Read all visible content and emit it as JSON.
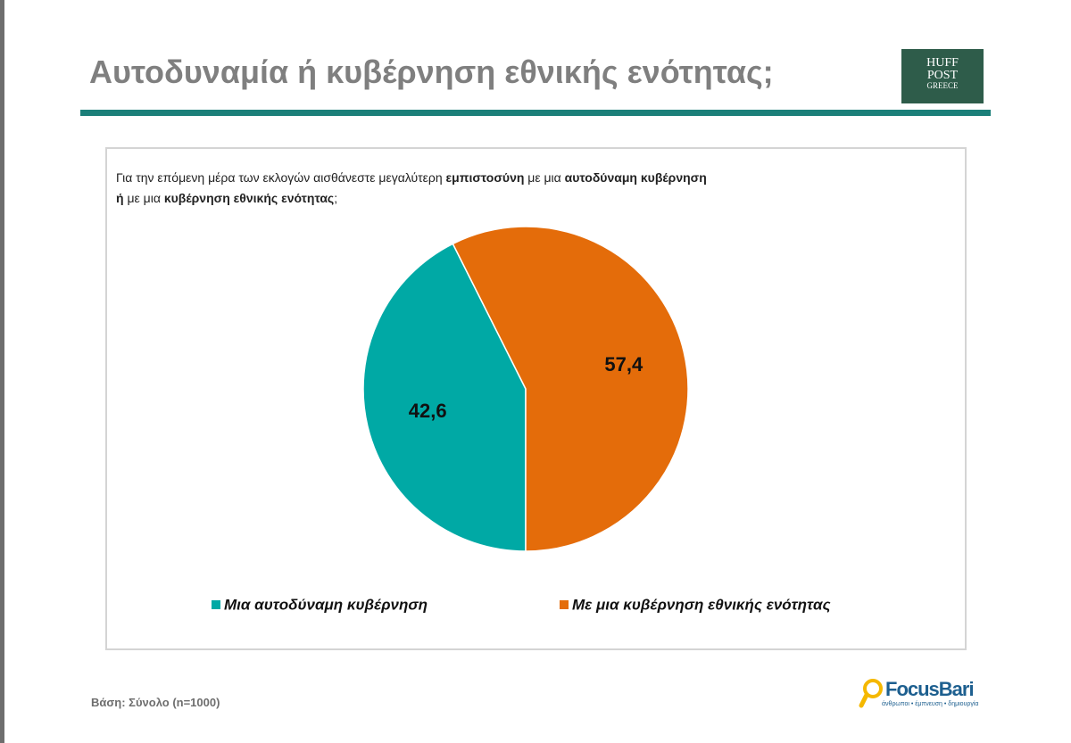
{
  "chart_data": {
    "type": "pie",
    "title": "Αυτοδυναμία ή κυβέρνηση εθνικής ενότητας;",
    "question": [
      [
        {
          "text": "Για την επόμενη μέρα των εκλογών αισθάνεστε μεγαλύτερη ",
          "bold": false
        },
        {
          "text": "εμπιστοσύνη",
          "bold": true
        },
        {
          "text": " με μια ",
          "bold": false
        },
        {
          "text": "αυτοδύναμη κυβέρνηση",
          "bold": true
        }
      ],
      [
        {
          "text": "ή",
          "bold": true
        },
        {
          "text": " με μια ",
          "bold": false
        },
        {
          "text": "κυβέρνηση εθνικής ενότητας",
          "bold": true
        },
        {
          "text": ";",
          "bold": false
        }
      ]
    ],
    "categories": [
      "Μια αυτοδύναμη κυβέρνηση",
      "Με μια κυβέρνηση εθνικής ενότητας"
    ],
    "values": [
      42.6,
      57.4
    ],
    "value_labels": [
      "42,6",
      "57,4"
    ],
    "colors": [
      "#00a9a5",
      "#e46c0a"
    ],
    "legend": "bottom"
  },
  "footer": "Βάση: Σύνολο (n=1000)",
  "logos": {
    "huffpost": [
      "HUFF",
      "POST",
      "GREECE"
    ],
    "focus": {
      "name": "FocusBari",
      "tagline": "άνθρωποι • έμπνευση • δημιουργία"
    }
  }
}
